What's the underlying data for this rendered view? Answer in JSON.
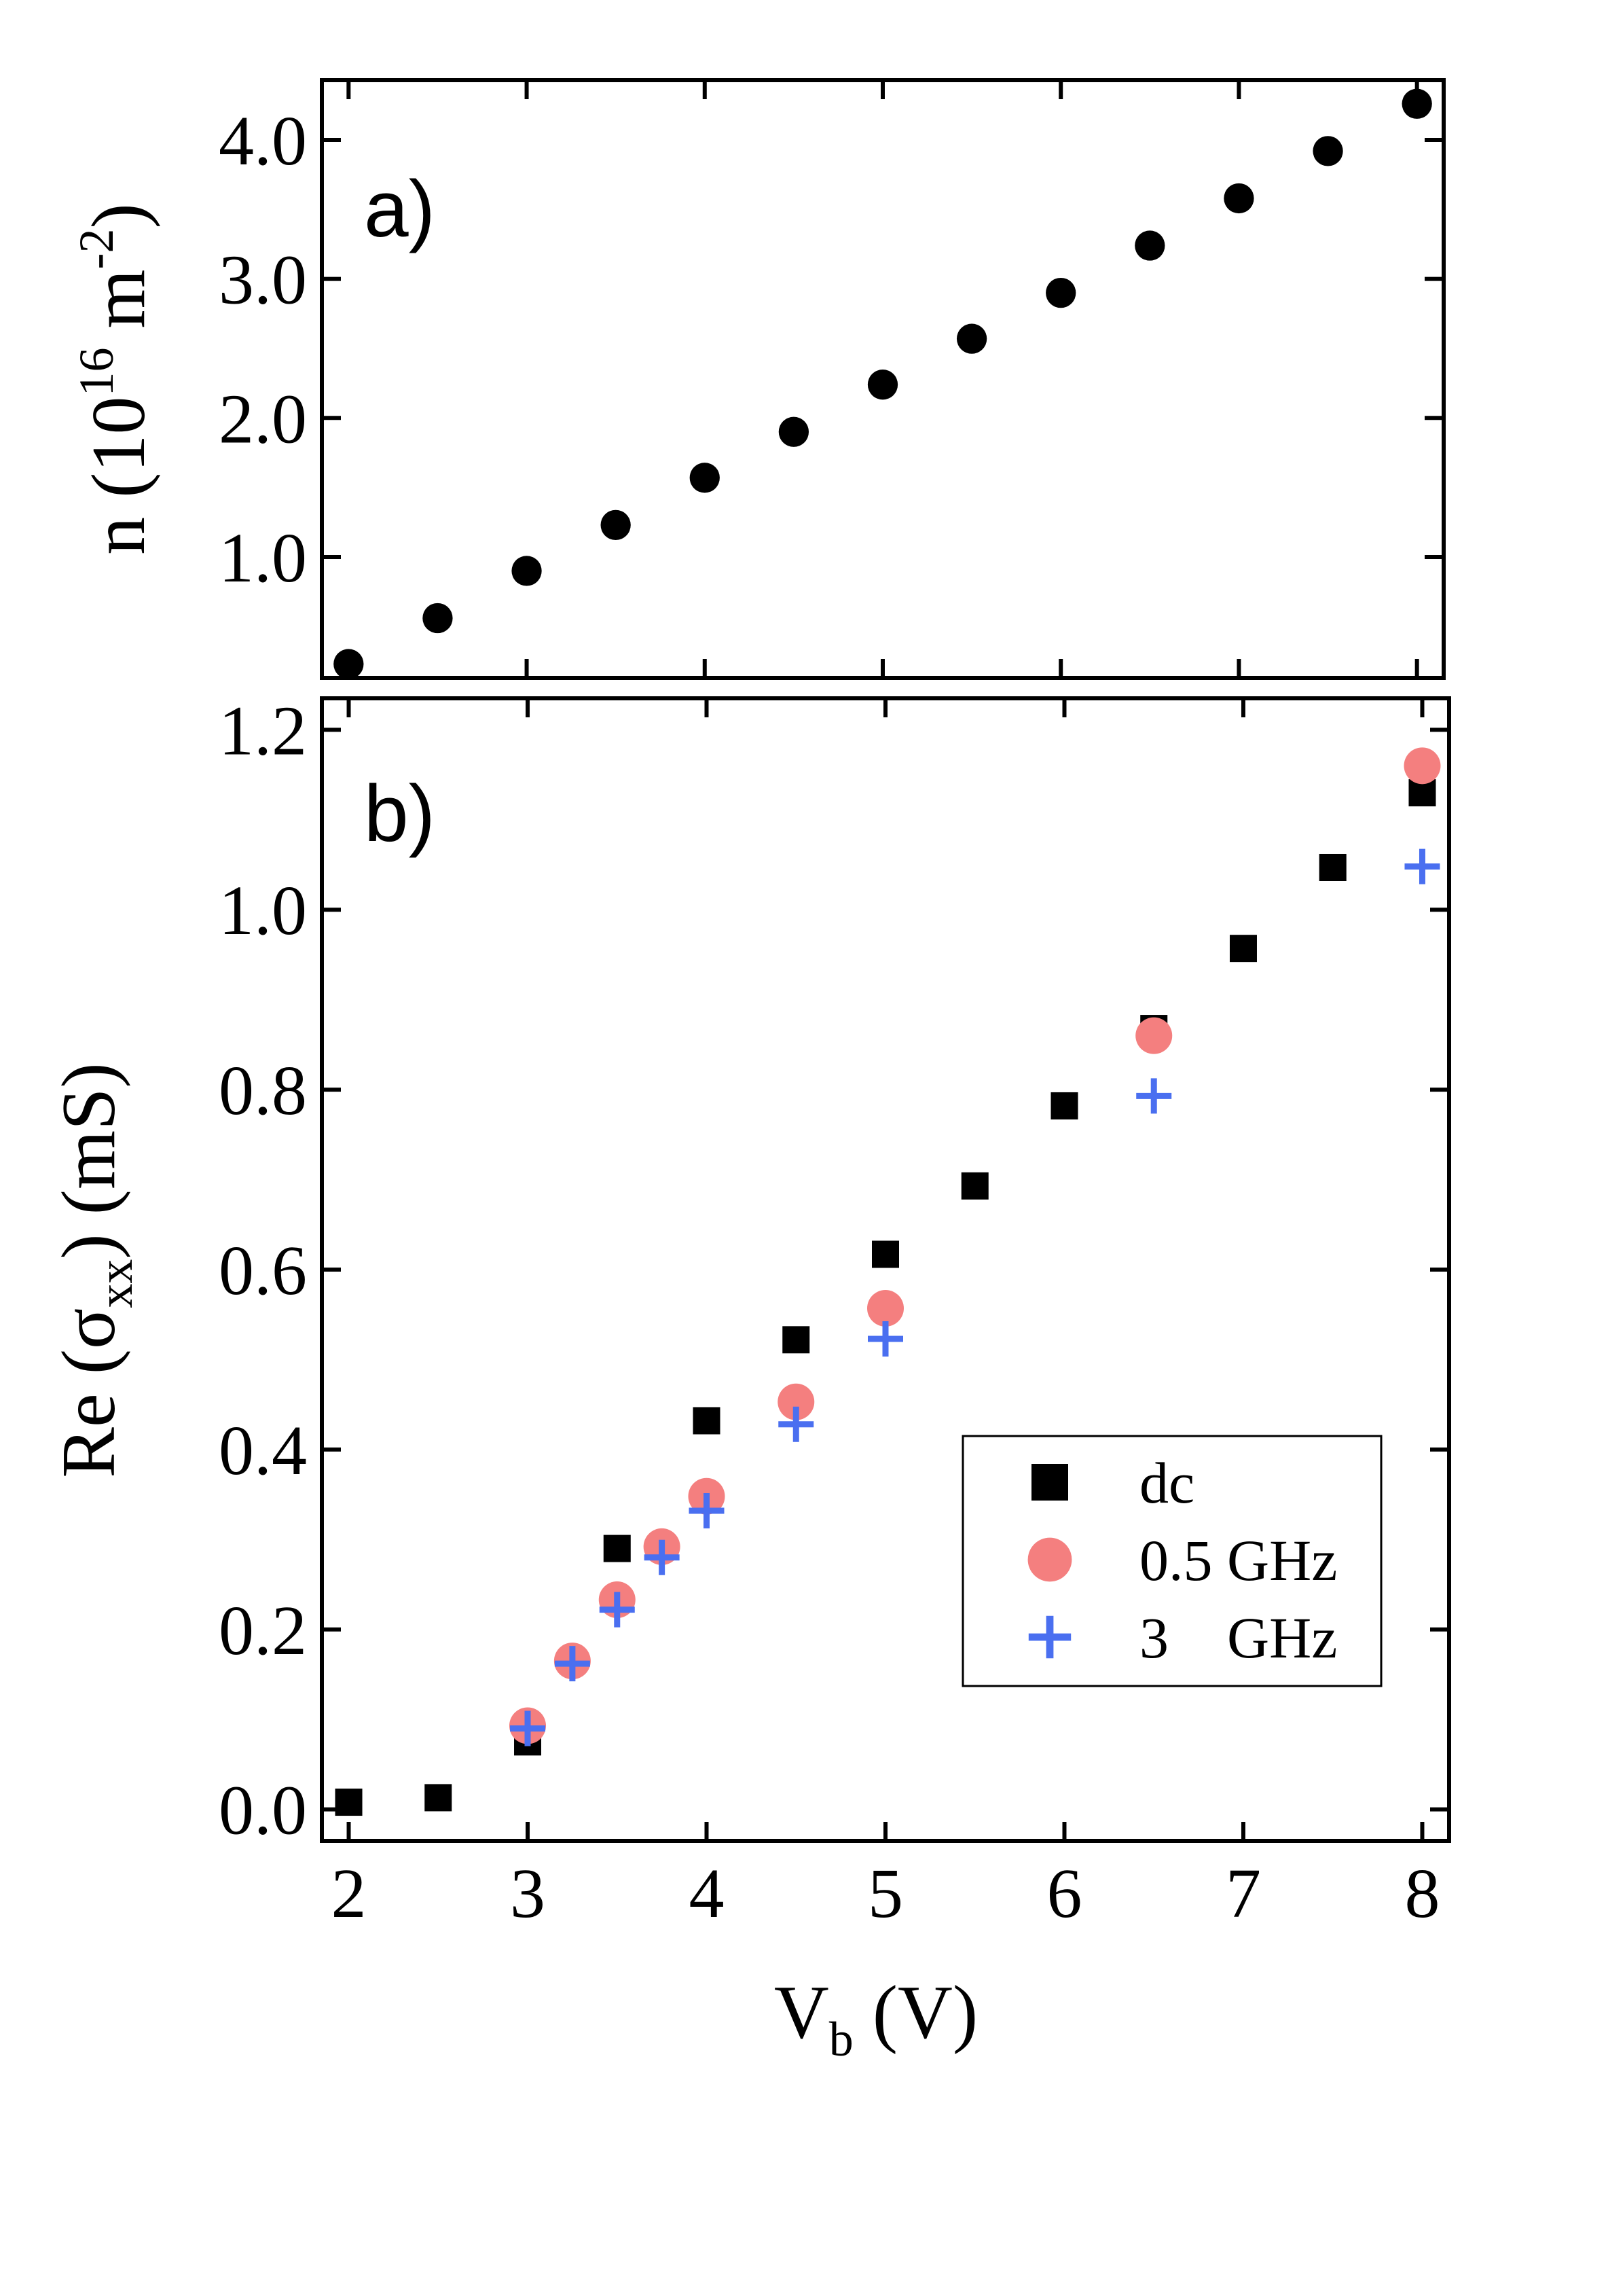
{
  "colors": {
    "dc": "#000000",
    "half_ghz": "#f47f7f",
    "three_ghz": "#4a6ff0",
    "top_points": "#000000"
  },
  "chart_data": [
    {
      "id": "panel-a",
      "type": "scatter",
      "panel_label": "a)",
      "ylabel": {
        "base": "n (10",
        "exp": "16",
        "unit": " m",
        "unit_exp": "-2",
        "close": ")"
      },
      "xlim": [
        1.85,
        8.15
      ],
      "ylim": [
        0.13,
        4.43
      ],
      "yticks": [
        1.0,
        2.0,
        3.0,
        4.0
      ],
      "ytick_labels": [
        "1.0",
        "2.0",
        "3.0",
        "4.0"
      ],
      "xticks": [
        2,
        3,
        4,
        5,
        6,
        7,
        8
      ],
      "series": [
        {
          "name": "n",
          "marker": "circle",
          "x": [
            2,
            2.5,
            3,
            3.5,
            4,
            4.5,
            5,
            5.5,
            6,
            6.5,
            7,
            7.5,
            8
          ],
          "y": [
            0.23,
            0.56,
            0.9,
            1.23,
            1.57,
            1.9,
            2.24,
            2.57,
            2.9,
            3.24,
            3.58,
            3.92,
            4.26
          ]
        }
      ]
    },
    {
      "id": "panel-b",
      "type": "scatter",
      "panel_label": "b)",
      "ylabel": {
        "base": "Re (σ",
        "sub": "xx",
        "close": ") (mS)"
      },
      "xlabel": {
        "base": "V",
        "sub": "b",
        "close": " (V)"
      },
      "xlim": [
        1.85,
        8.15
      ],
      "ylim": [
        -0.035,
        1.235
      ],
      "yticks": [
        0.0,
        0.2,
        0.4,
        0.6,
        0.8,
        1.0,
        1.2
      ],
      "ytick_labels": [
        "0.0",
        "0.2",
        "0.4",
        "0.6",
        "0.8",
        "1.0",
        "1.2"
      ],
      "xticks": [
        2,
        3,
        4,
        5,
        6,
        7,
        8
      ],
      "xtick_labels": [
        "2",
        "3",
        "4",
        "5",
        "6",
        "7",
        "8"
      ],
      "series": [
        {
          "name": "dc",
          "marker": "square",
          "x": [
            2,
            2.5,
            3,
            3.5,
            4,
            4.5,
            5,
            5.5,
            6,
            6.5,
            7,
            7.5,
            8
          ],
          "y": [
            0.008,
            0.013,
            0.075,
            0.29,
            0.432,
            0.522,
            0.617,
            0.693,
            0.782,
            0.868,
            0.957,
            1.047,
            1.13
          ]
        },
        {
          "name": "0.5 GHz",
          "marker": "circle",
          "x": [
            3,
            3.25,
            3.5,
            3.75,
            4,
            4.5,
            5,
            6.5,
            8
          ],
          "y": [
            0.093,
            0.165,
            0.233,
            0.292,
            0.348,
            0.453,
            0.557,
            0.86,
            1.16
          ]
        },
        {
          "name": "3 GHz",
          "marker": "plus",
          "x": [
            3,
            3.25,
            3.5,
            3.75,
            4,
            4.5,
            5,
            6.5,
            8
          ],
          "y": [
            0.09,
            0.162,
            0.222,
            0.28,
            0.332,
            0.428,
            0.523,
            0.793,
            1.048
          ]
        }
      ],
      "legend": {
        "position": "lower-right",
        "entries": [
          {
            "marker": "square",
            "label": "dc"
          },
          {
            "marker": "circle",
            "label": "0.5 GHz"
          },
          {
            "marker": "plus",
            "label": "3    GHz"
          }
        ]
      }
    }
  ]
}
